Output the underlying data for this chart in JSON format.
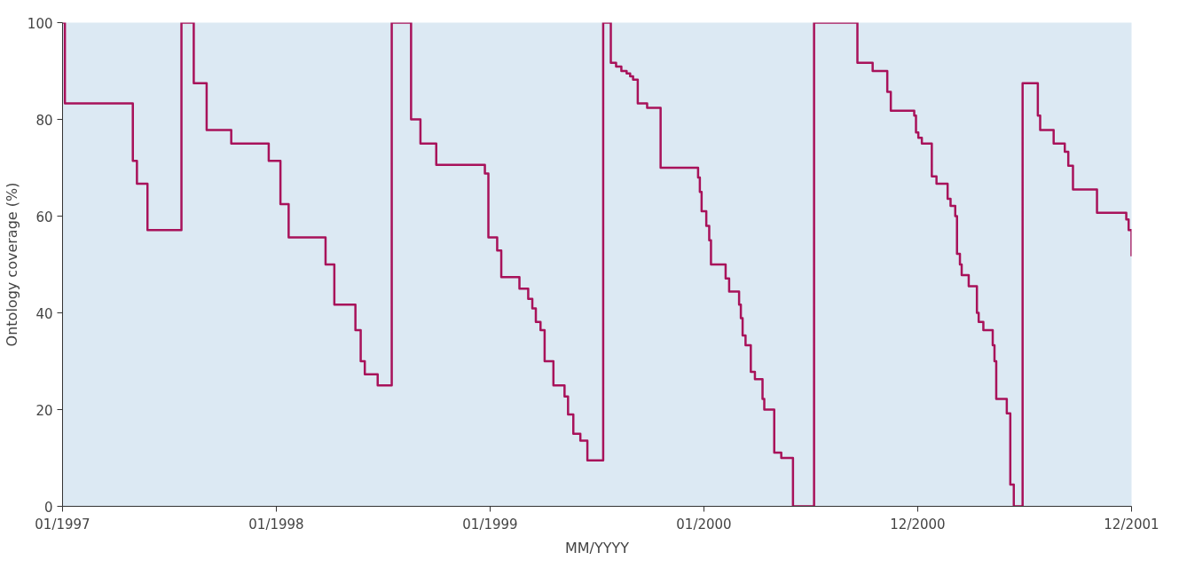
{
  "chart_data": {
    "type": "step",
    "xlabel": "MM/YYYY",
    "ylabel": "Ontology coverage (%)",
    "xlim": [
      "1997-01-01",
      "2001-12-31"
    ],
    "ylim": [
      0,
      100
    ],
    "xticks": [
      {
        "value": "1997-01-01",
        "label": "01/1997"
      },
      {
        "value": "1998-01-01",
        "label": "01/1998"
      },
      {
        "value": "1999-01-01",
        "label": "01/1999"
      },
      {
        "value": "2000-01-01",
        "label": "01/2000"
      },
      {
        "value": "2000-12-31",
        "label": "12/2000"
      },
      {
        "value": "2001-12-31",
        "label": "12/2001"
      }
    ],
    "yticks": [
      0,
      20,
      40,
      60,
      80,
      100
    ],
    "grid": false,
    "marker": "none",
    "line_style": "solid",
    "series": [
      {
        "color": "#a8125a",
        "x": [
          "1997-01-01",
          "1997-01-05",
          "1997-05-01",
          "1997-05-08",
          "1997-05-26",
          "1997-07-23",
          "1997-08-13",
          "1997-09-04",
          "1997-10-16",
          "1997-12-19",
          "1998-01-08",
          "1998-01-22",
          "1998-03-26",
          "1998-04-10",
          "1998-05-16",
          "1998-05-25",
          "1998-06-01",
          "1998-06-23",
          "1998-07-17",
          "1998-08-19",
          "1998-09-04",
          "1998-10-01",
          "1998-12-23",
          "1998-12-29",
          "1999-01-13",
          "1999-01-20",
          "1999-02-20",
          "1999-03-07",
          "1999-03-14",
          "1999-03-20",
          "1999-03-28",
          "1999-04-04",
          "1999-04-19",
          "1999-05-08",
          "1999-05-14",
          "1999-05-23",
          "1999-06-04",
          "1999-06-16",
          "1999-07-13",
          "1999-07-26",
          "1999-08-04",
          "1999-08-13",
          "1999-08-22",
          "1999-08-28",
          "1999-09-02",
          "1999-09-10",
          "1999-09-26",
          "1999-10-19",
          "1999-12-22",
          "1999-12-25",
          "1999-12-28",
          "2000-01-05",
          "2000-01-10",
          "2000-01-13",
          "2000-02-07",
          "2000-02-13",
          "2000-03-01",
          "2000-03-04",
          "2000-03-07",
          "2000-03-12",
          "2000-03-21",
          "2000-03-28",
          "2000-04-10",
          "2000-04-13",
          "2000-04-30",
          "2000-05-12",
          "2000-06-01",
          "2000-07-07",
          "2000-09-19",
          "2000-10-15",
          "2000-11-09",
          "2000-11-15",
          "2000-12-25",
          "2000-12-28",
          "2001-01-01",
          "2001-01-07",
          "2001-01-24",
          "2001-02-01",
          "2001-02-20",
          "2001-02-25",
          "2001-03-05",
          "2001-03-08",
          "2001-03-13",
          "2001-03-16",
          "2001-03-28",
          "2001-04-11",
          "2001-04-14",
          "2001-04-22",
          "2001-05-08",
          "2001-05-11",
          "2001-05-14",
          "2001-06-01",
          "2001-06-07",
          "2001-06-13",
          "2001-06-28",
          "2001-07-24",
          "2001-07-28",
          "2001-08-20",
          "2001-09-08",
          "2001-09-14",
          "2001-09-22",
          "2001-11-02",
          "2001-12-22",
          "2001-12-26",
          "2001-12-31"
        ],
        "values": [
          100,
          83.3,
          71.4,
          66.7,
          57.1,
          100,
          87.5,
          77.8,
          75,
          71.4,
          62.5,
          55.6,
          50,
          41.7,
          36.4,
          30,
          27.3,
          25,
          100,
          80,
          75,
          70.6,
          68.8,
          55.6,
          52.9,
          47.4,
          45,
          42.9,
          40.9,
          38.1,
          36.4,
          30,
          25,
          22.7,
          19,
          15,
          13.6,
          9.5,
          100,
          91.7,
          90.9,
          90,
          89.5,
          88.9,
          88.2,
          83.3,
          82.4,
          70,
          68,
          65,
          61,
          58,
          55,
          50,
          47.1,
          44.4,
          41.7,
          38.9,
          35.3,
          33.3,
          27.8,
          26.3,
          22.2,
          20,
          11.1,
          10,
          0,
          100,
          91.7,
          90,
          85.7,
          81.8,
          80.8,
          77.3,
          76.2,
          75,
          68.2,
          66.7,
          63.6,
          62.1,
          60,
          52.2,
          50,
          47.8,
          45.5,
          40,
          38.1,
          36.4,
          33.3,
          30,
          22.2,
          19.2,
          4.5,
          0,
          87.5,
          80.8,
          77.8,
          75,
          73.3,
          70.4,
          65.5,
          60.7,
          59.3,
          57.1,
          51.7
        ]
      }
    ]
  }
}
